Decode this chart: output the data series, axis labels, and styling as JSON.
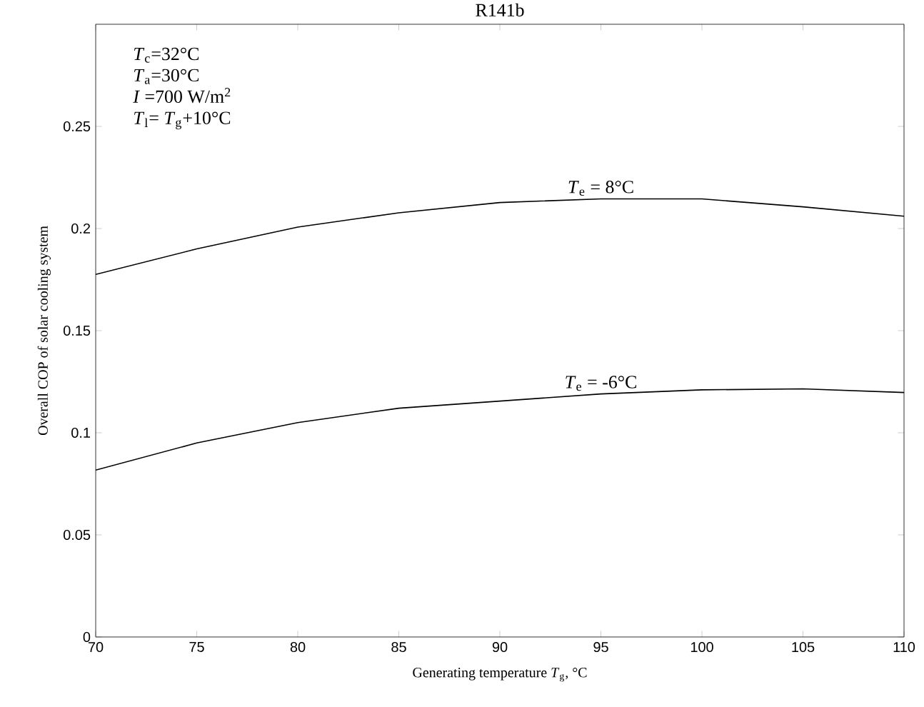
{
  "chart_data": {
    "type": "line",
    "title": "R141b",
    "xlabel": "Generating temperature *T*$_{g}$, °C",
    "ylabel": "Overall COP of solar cooling system",
    "x": [
      70,
      75,
      80,
      85,
      90,
      95,
      100,
      105,
      110
    ],
    "series": [
      {
        "name": "*T*$_{e}$ = 8°C",
        "color": "#000000",
        "values": [
          0.1775,
          0.19,
          0.2007,
          0.2077,
          0.2127,
          0.2145,
          0.2145,
          0.2106,
          0.206
        ]
      },
      {
        "name": "*T*$_{e}$ = -6°C",
        "color": "#000000",
        "values": [
          0.0817,
          0.095,
          0.105,
          0.112,
          0.1155,
          0.119,
          0.121,
          0.1215,
          0.1197
        ]
      }
    ],
    "annotations": [
      "*T*$_{c}$=32°C",
      "*T*$_{a}$=30°C",
      "*I* =700 W/m$^{2}$",
      "*T*$_{l}$= *T*$_{g}$+10°C"
    ],
    "xlim": [
      70,
      110
    ],
    "ylim": [
      0,
      0.3
    ],
    "xticks": [
      70,
      75,
      80,
      85,
      90,
      95,
      100,
      105,
      110
    ],
    "yticks": [
      0,
      0.05,
      0.1,
      0.15,
      0.2,
      0.25
    ],
    "grid": false,
    "marker": "none",
    "line_style": "solid"
  }
}
